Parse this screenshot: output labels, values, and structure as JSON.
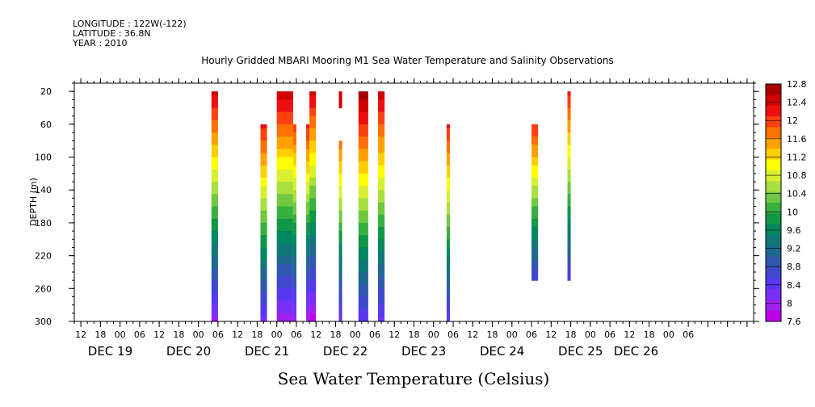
{
  "header": {
    "longitude": "LONGITUDE : 122W(-122)",
    "latitude": "LATITUDE : 36.8N",
    "year": "YEAR : 2010"
  },
  "chart_data": {
    "type": "heatmap",
    "title": "Hourly Gridded MBARI Mooring M1 Sea Water Temperature and Salinity Observations",
    "xlabel": "Sea Water Temperature (Celsius)",
    "ylabel": "DEPTH (m)",
    "x_unit": "hours since DEC 19 00:00, 2010",
    "xlim": [
      -14,
      194
    ],
    "ylim": [
      300,
      10
    ],
    "y_ticks": [
      20,
      60,
      100,
      140,
      180,
      220,
      260,
      300
    ],
    "x_hour_labels": [
      "12",
      "18",
      "00",
      "06",
      "12",
      "18",
      "00",
      "06",
      "12",
      "18",
      "00",
      "06",
      "12",
      "18",
      "00",
      "06",
      "12",
      "18",
      "00",
      "06",
      "12",
      "18",
      "00",
      "06",
      "12",
      "18",
      "00",
      "06",
      "12",
      "18",
      "00",
      "06"
    ],
    "x_date_labels": [
      {
        "label": "DEC 19",
        "hour": -3
      },
      {
        "label": "DEC 20",
        "hour": 21
      },
      {
        "label": "DEC 21",
        "hour": 45
      },
      {
        "label": "DEC 22",
        "hour": 69
      },
      {
        "label": "DEC 23",
        "hour": 93
      },
      {
        "label": "DEC 24",
        "hour": 117
      },
      {
        "label": "DEC 25",
        "hour": 141
      },
      {
        "label": "DEC 26",
        "hour": 158
      }
    ],
    "colorbar": {
      "levels": [
        "12.8",
        "12.4",
        "12",
        "11.6",
        "11.2",
        "10.8",
        "10.4",
        "10",
        "9.6",
        "9.2",
        "8.8",
        "8.4",
        "8",
        "7.6"
      ],
      "min": 7.6,
      "max": 12.8,
      "colors": [
        "#a80000",
        "#d00000",
        "#ee1010",
        "#ff4010",
        "#ff7000",
        "#ffa000",
        "#ffd000",
        "#ffff00",
        "#d8f030",
        "#a8e040",
        "#70c840",
        "#38b040",
        "#109848",
        "#008860",
        "#107878",
        "#206890",
        "#3058b0",
        "#4048d0",
        "#5838f0",
        "#7830f8",
        "#a020f0",
        "#c000e8"
      ]
    },
    "data_segments": [
      {
        "x0": 28,
        "x1": 30,
        "y_top": 20,
        "y_bottom": 300,
        "t_top": 12.4,
        "t_bottom": 8.0
      },
      {
        "x0": 43,
        "x1": 45,
        "y_top": 60,
        "y_bottom": 300,
        "t_top": 12.2,
        "t_bottom": 8.2
      },
      {
        "x0": 48,
        "x1": 53,
        "y_top": 20,
        "y_bottom": 300,
        "t_top": 12.5,
        "t_bottom": 7.9
      },
      {
        "x0": 53,
        "x1": 54,
        "y_top": 60,
        "y_bottom": 300,
        "t_top": 12.0,
        "t_bottom": 8.0
      },
      {
        "x0": 57,
        "x1": 58,
        "y_top": 60,
        "y_bottom": 300,
        "t_top": 12.2,
        "t_bottom": 7.8
      },
      {
        "x0": 58,
        "x1": 60,
        "y_top": 20,
        "y_bottom": 300,
        "t_top": 12.4,
        "t_bottom": 7.7
      },
      {
        "x0": 67,
        "x1": 68,
        "y_top": 20,
        "y_bottom": 40,
        "t_top": 12.5,
        "t_bottom": 12.4
      },
      {
        "x0": 67,
        "x1": 68,
        "y_top": 80,
        "y_bottom": 300,
        "t_top": 11.8,
        "t_bottom": 8.2
      },
      {
        "x0": 73,
        "x1": 76,
        "y_top": 20,
        "y_bottom": 300,
        "t_top": 12.7,
        "t_bottom": 8.3
      },
      {
        "x0": 79,
        "x1": 81,
        "y_top": 20,
        "y_bottom": 300,
        "t_top": 12.5,
        "t_bottom": 8.2
      },
      {
        "x0": 100,
        "x1": 101,
        "y_top": 60,
        "y_bottom": 300,
        "t_top": 12.2,
        "t_bottom": 8.3
      },
      {
        "x0": 126,
        "x1": 128,
        "y_top": 60,
        "y_bottom": 250,
        "t_top": 12.1,
        "t_bottom": 8.5
      },
      {
        "x0": 137,
        "x1": 138,
        "y_top": 20,
        "y_bottom": 250,
        "t_top": 12.2,
        "t_bottom": 8.5
      }
    ]
  }
}
